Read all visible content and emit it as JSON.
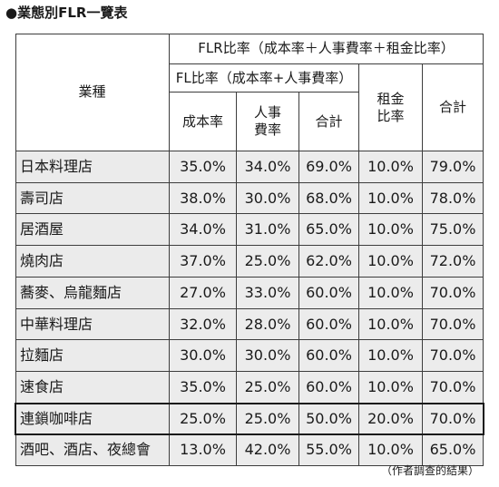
{
  "title": "●業態別FLR一覽表",
  "headers": {
    "industry": "業種",
    "flr_total": "FLR比率（成本率＋人事費率＋租金比率）",
    "fl_ratio": "FL比率（成本率+人事費率）",
    "cost_rate": "成本率",
    "labor_rate": "人事\n費率",
    "fl_sum": "合計",
    "rent_ratio": "租金\n比率",
    "flr_sum": "合計"
  },
  "rows": [
    [
      "日本料理店",
      "35.0%",
      "34.0%",
      "69.0%",
      "10.0%",
      "79.0%"
    ],
    [
      "壽司店",
      "38.0%",
      "30.0%",
      "68.0%",
      "10.0%",
      "78.0%"
    ],
    [
      "居酒屋",
      "34.0%",
      "31.0%",
      "65.0%",
      "10.0%",
      "75.0%"
    ],
    [
      "燒肉店",
      "37.0%",
      "25.0%",
      "62.0%",
      "10.0%",
      "72.0%"
    ],
    [
      "蕎麥、烏龍麵店",
      "27.0%",
      "33.0%",
      "60.0%",
      "10.0%",
      "70.0%"
    ],
    [
      "中華料理店",
      "32.0%",
      "28.0%",
      "60.0%",
      "10.0%",
      "70.0%"
    ],
    [
      "拉麵店",
      "30.0%",
      "30.0%",
      "60.0%",
      "10.0%",
      "70.0%"
    ],
    [
      "速食店",
      "35.0%",
      "25.0%",
      "60.0%",
      "10.0%",
      "70.0%"
    ],
    [
      "連鎖咖啡店",
      "25.0%",
      "25.0%",
      "50.0%",
      "20.0%",
      "70.0%"
    ],
    [
      "酒吧、酒店、夜總會",
      "13.0%",
      "42.0%",
      "55.0%",
      "10.0%",
      "65.0%"
    ]
  ],
  "source": "（作者調查的結果）"
}
